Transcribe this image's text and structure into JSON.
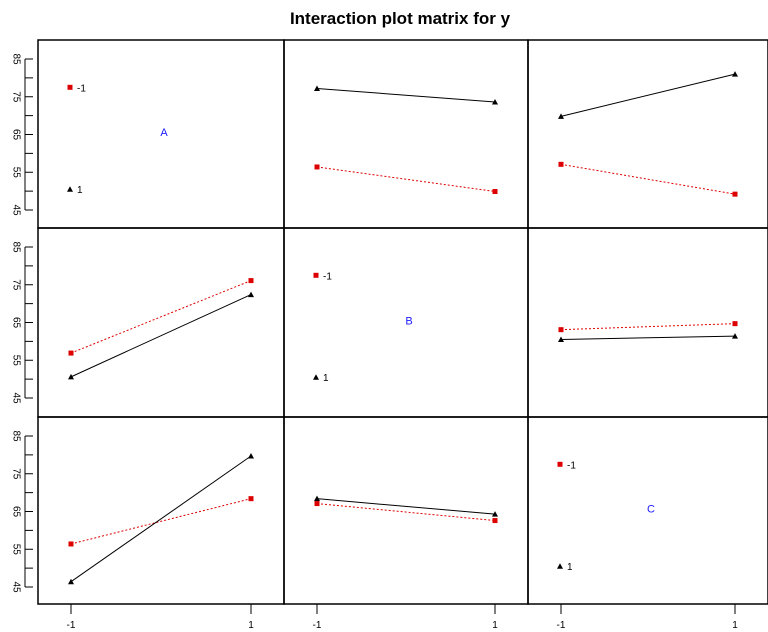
{
  "chart_data": {
    "type": "line",
    "title": "Interaction plot matrix for y",
    "factors": [
      "A",
      "B",
      "C"
    ],
    "levels": [
      "-1",
      "1"
    ],
    "x_tick_labels": [
      "-1",
      "1"
    ],
    "y_tick_labels": [
      "85",
      "75",
      "65",
      "55",
      "45"
    ],
    "ylim": [
      40,
      90
    ],
    "series_styles": [
      {
        "level": "-1",
        "color": "#dd0000",
        "line": "dotted",
        "marker": "square"
      },
      {
        "level": "1",
        "color": "#000000",
        "line": "solid",
        "marker": "triangle"
      }
    ],
    "diagonal": [
      {
        "factor": "A",
        "means": {
          "-1": 77.5,
          "1": 50.5
        }
      },
      {
        "factor": "B",
        "means": {
          "-1": 77.5,
          "1": 50.5
        }
      },
      {
        "factor": "C",
        "means": {
          "-1": 77.5,
          "1": 50.5
        }
      }
    ],
    "panels": [
      {
        "row": 0,
        "col": 1,
        "series": [
          {
            "level": "1",
            "values": [
              77.2,
              73.6
            ]
          },
          {
            "level": "-1",
            "values": [
              56.4,
              49.9
            ]
          }
        ]
      },
      {
        "row": 0,
        "col": 2,
        "series": [
          {
            "level": "1",
            "values": [
              69.8,
              81.0
            ]
          },
          {
            "level": "-1",
            "values": [
              57.1,
              49.2
            ]
          }
        ]
      },
      {
        "row": 1,
        "col": 0,
        "series": [
          {
            "level": "-1",
            "values": [
              56.9,
              76.1
            ]
          },
          {
            "level": "1",
            "values": [
              50.6,
              72.4
            ]
          }
        ]
      },
      {
        "row": 1,
        "col": 2,
        "series": [
          {
            "level": "-1",
            "values": [
              63.1,
              64.7
            ]
          },
          {
            "level": "1",
            "values": [
              60.5,
              61.4
            ]
          }
        ]
      },
      {
        "row": 2,
        "col": 0,
        "series": [
          {
            "level": "-1",
            "values": [
              56.4,
              68.4
            ]
          },
          {
            "level": "1",
            "values": [
              46.4,
              79.7
            ]
          }
        ]
      },
      {
        "row": 2,
        "col": 1,
        "series": [
          {
            "level": "1",
            "values": [
              68.4,
              64.3
            ]
          },
          {
            "level": "-1",
            "values": [
              67.1,
              62.6
            ]
          }
        ]
      }
    ]
  }
}
